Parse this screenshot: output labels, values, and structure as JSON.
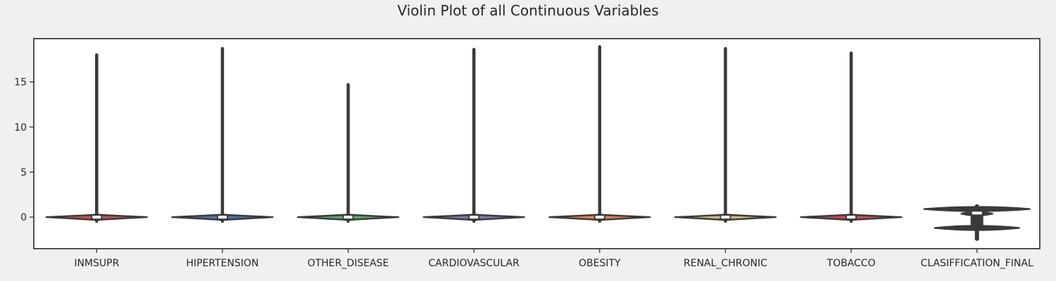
{
  "chart_data": {
    "type": "violin",
    "title": "Violin Plot of all Continuous Variables",
    "xlabel": "",
    "ylabel": "",
    "ylim": [
      -3.5,
      19.8
    ],
    "yticks": [
      0,
      5,
      10,
      15
    ],
    "ytick_labels": [
      "0",
      "5",
      "10",
      "15"
    ],
    "grid": false,
    "legend": "none",
    "categories": [
      "INMSUPR",
      "HIPERTENSION",
      "OTHER_DISEASE",
      "CARDIOVASCULAR",
      "OBESITY",
      "RENAL_CHRONIC",
      "TOBACCO",
      "CLASIFFICATION_FINAL"
    ],
    "violins": [
      {
        "category": "INMSUPR",
        "median": 0,
        "q1": -0.2,
        "q3": 0.2,
        "min": -0.45,
        "max": 18.0,
        "fill": "#c44e52"
      },
      {
        "category": "HIPERTENSION",
        "median": 0,
        "q1": -0.2,
        "q3": 0.2,
        "min": -0.45,
        "max": 18.7,
        "fill": "#4c72b0"
      },
      {
        "category": "OTHER_DISEASE",
        "median": 0,
        "q1": -0.2,
        "q3": 0.2,
        "min": -0.45,
        "max": 14.7,
        "fill": "#55a868"
      },
      {
        "category": "CARDIOVASCULAR",
        "median": 0,
        "q1": -0.2,
        "q3": 0.2,
        "min": -0.45,
        "max": 18.6,
        "fill": "#8172b2"
      },
      {
        "category": "OBESITY",
        "median": 0,
        "q1": -0.2,
        "q3": 0.2,
        "min": -0.45,
        "max": 18.9,
        "fill": "#dd8452"
      },
      {
        "category": "RENAL_CHRONIC",
        "median": 0,
        "q1": -0.2,
        "q3": 0.2,
        "min": -0.45,
        "max": 18.7,
        "fill": "#ccb974"
      },
      {
        "category": "TOBACCO",
        "median": 0,
        "q1": -0.2,
        "q3": 0.2,
        "min": -0.45,
        "max": 18.2,
        "fill": "#c44e52"
      },
      {
        "category": "CLASIFFICATION_FINAL",
        "median": 0.45,
        "q1": -1.2,
        "q3": 0.8,
        "min": -2.4,
        "max": 1.2,
        "fill": "#8c8c8c"
      }
    ],
    "colors": {
      "outline": "#3a3a3a",
      "median_marker": "#ffffff",
      "axes_background": "#ffffff",
      "figure_background": "#f0f0f0"
    }
  }
}
